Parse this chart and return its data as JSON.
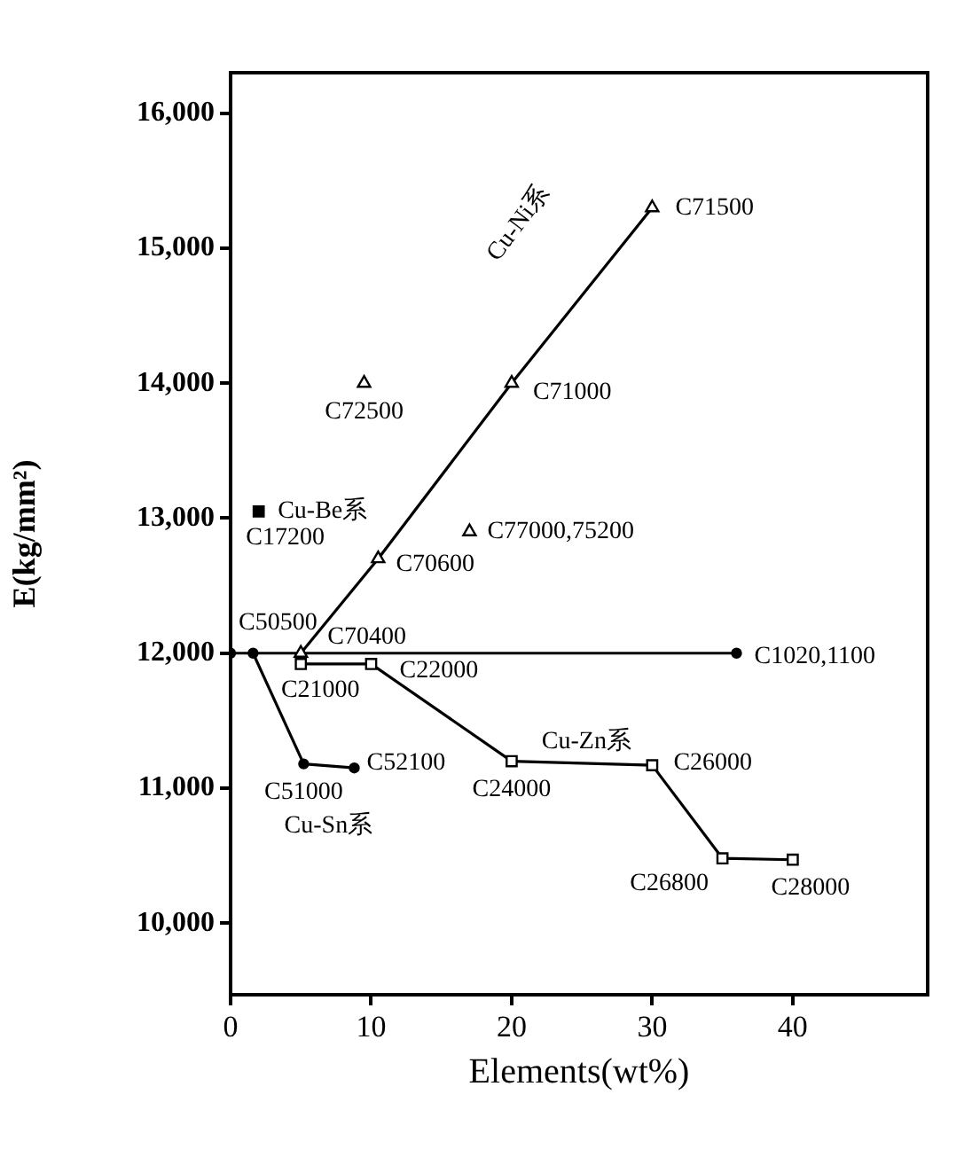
{
  "chart_data": {
    "type": "line",
    "xlabel": "Elements(wt%)",
    "ylabel": "E(kg/mm²)",
    "xlim": [
      0,
      49.6
    ],
    "xticks": [
      0,
      10,
      20,
      30,
      40
    ],
    "ylim": [
      9470,
      16300
    ],
    "yticks": [
      {
        "value": 10000,
        "label": "10,000"
      },
      {
        "value": 11000,
        "label": "11,000"
      },
      {
        "value": 12000,
        "label": "12,000"
      },
      {
        "value": 13000,
        "label": "13,000"
      },
      {
        "value": 14000,
        "label": "14,000"
      },
      {
        "value": 15000,
        "label": "15,000"
      },
      {
        "value": 16000,
        "label": "16,000"
      }
    ],
    "line_style": "solid",
    "series": [
      {
        "name": "Cu-Ni系",
        "color": "#000000",
        "marker": "triangle",
        "x": [
          5,
          10.5,
          20,
          30
        ],
        "values": [
          12000,
          12700,
          14000,
          15300
        ]
      },
      {
        "type": "scatter",
        "color": "#000000",
        "marker": "triangle",
        "x": [
          9.5,
          17
        ],
        "values": [
          14000,
          12900
        ]
      },
      {
        "name": "Cu-Be系",
        "type": "scatter",
        "color": "#000000",
        "marker": "square",
        "x": [
          2
        ],
        "values": [
          13050
        ]
      },
      {
        "color": "#000000",
        "marker": "circle",
        "x": [
          0,
          36
        ],
        "values": [
          12000,
          12000
        ]
      },
      {
        "name": "Cu-Sn系",
        "color": "#000000",
        "marker": "circle",
        "x": [
          1.6,
          5.2,
          8.8
        ],
        "values": [
          12000,
          11180,
          11150
        ]
      },
      {
        "name": "Cu-Zn系",
        "color": "#000000",
        "marker": "square",
        "x": [
          5,
          10,
          20,
          30,
          35,
          40
        ],
        "values": [
          11920,
          11920,
          11200,
          11170,
          10480,
          10470
        ]
      }
    ],
    "annotations": [
      {
        "text": "C71500",
        "x": 30,
        "y": 15300
      },
      {
        "text": "C71000",
        "x": 20,
        "y": 14000
      },
      {
        "text": "C72500",
        "x": 9.5,
        "y": 14000
      },
      {
        "text": "C77000,75200",
        "x": 17,
        "y": 12900
      },
      {
        "text": "C70600",
        "x": 10.5,
        "y": 12700
      },
      {
        "text": "C17200",
        "x": 2,
        "y": 13050
      },
      {
        "text": "C50500",
        "x": 1.6,
        "y": 12000
      },
      {
        "text": "C70400",
        "x": 5,
        "y": 12000
      },
      {
        "text": "C21000",
        "x": 5,
        "y": 11920
      },
      {
        "text": "C22000",
        "x": 10,
        "y": 11920
      },
      {
        "text": "C1020,1100",
        "x": 36,
        "y": 12000
      },
      {
        "text": "C51000",
        "x": 5.2,
        "y": 11180
      },
      {
        "text": "C52100",
        "x": 8.8,
        "y": 11150
      },
      {
        "text": "C24000",
        "x": 20,
        "y": 11200
      },
      {
        "text": "C26000",
        "x": 30,
        "y": 11170
      },
      {
        "text": "C26800",
        "x": 35,
        "y": 10480
      },
      {
        "text": "C28000",
        "x": 40,
        "y": 10470
      }
    ]
  }
}
